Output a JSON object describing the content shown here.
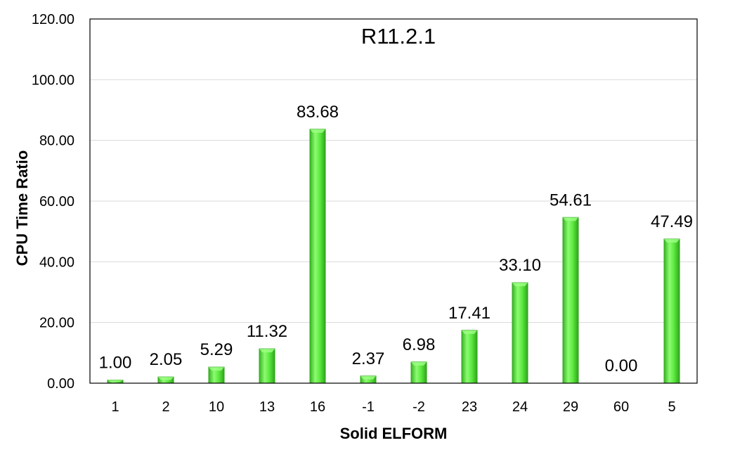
{
  "chart_data": {
    "type": "bar",
    "title": "R11.2.1",
    "xlabel": "Solid ELFORM",
    "ylabel": "CPU Time Ratio",
    "categories": [
      "1",
      "2",
      "10",
      "13",
      "16",
      "-1",
      "-2",
      "23",
      "24",
      "29",
      "60",
      "5"
    ],
    "values": [
      1.0,
      2.05,
      5.29,
      11.32,
      83.68,
      2.37,
      6.98,
      17.41,
      33.1,
      54.61,
      0.0,
      47.49
    ],
    "value_labels": [
      "1.00",
      "2.05",
      "5.29",
      "11.32",
      "83.68",
      "2.37",
      "6.98",
      "17.41",
      "33.10",
      "54.61",
      "0.00",
      "47.49"
    ],
    "ylim": [
      0,
      120
    ],
    "yticks": [
      "0.00",
      "20.00",
      "40.00",
      "60.00",
      "80.00",
      "100.00",
      "120.00"
    ],
    "grid": true,
    "legend": "none",
    "colors": {
      "bar": "#55e63a",
      "bar_dark": "#2fa51c",
      "bar_light": "#9dff86"
    }
  }
}
